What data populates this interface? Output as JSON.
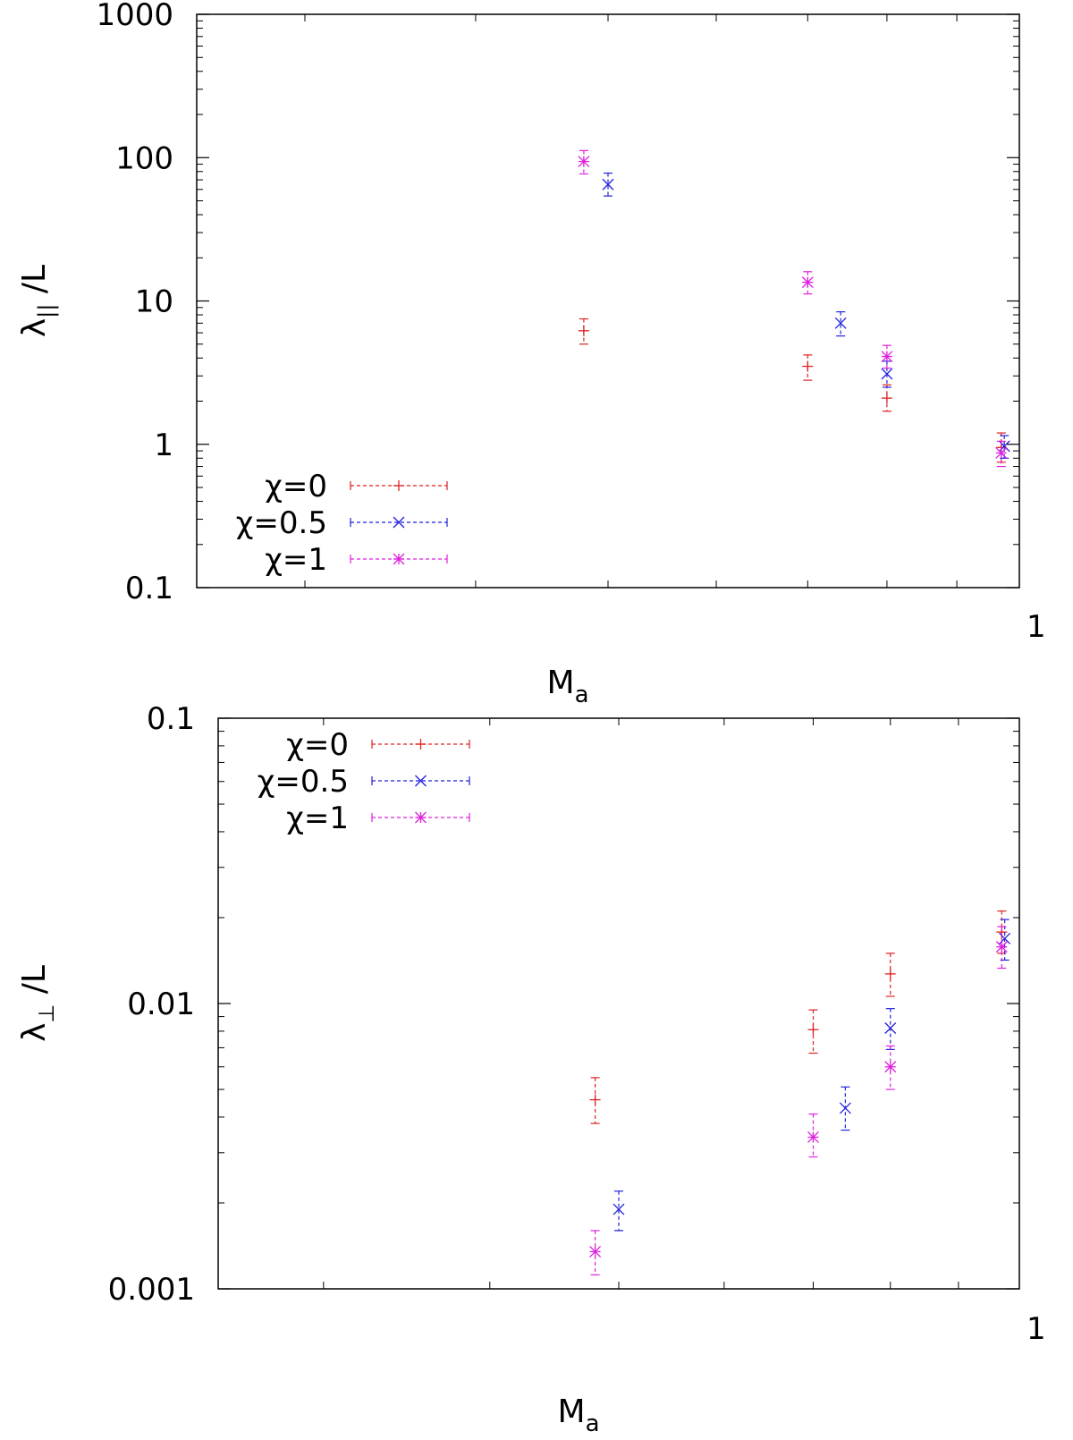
{
  "chart_data": [
    {
      "type": "scatter",
      "title": "",
      "xlabel": "M",
      "xlabel_sub": "a",
      "ylabel": "λ",
      "ylabel_sub": "||",
      "ylabel_suffix": " /L",
      "xscale": "log",
      "yscale": "log",
      "xlim": [
        0.25,
        1
      ],
      "ylim": [
        0.1,
        1000
      ],
      "x_tick_labels": [
        "1"
      ],
      "y_tick_labels": [
        "0.1",
        "1",
        "10",
        "100",
        "1000"
      ],
      "y_ticks": [
        0.1,
        1,
        10,
        100,
        1000
      ],
      "legend_position": "bottom-left",
      "grid": false,
      "series": [
        {
          "name": "χ=0",
          "color": "#dd2222",
          "marker": "plus",
          "x": [
            0.48,
            0.7,
            0.8,
            0.97
          ],
          "y": [
            6.2,
            3.5,
            2.1,
            0.95
          ],
          "ylo": [
            5.0,
            2.8,
            1.7,
            0.75
          ],
          "yhi": [
            7.5,
            4.2,
            2.6,
            1.2
          ]
        },
        {
          "name": "χ=0.5",
          "color": "#2222dd",
          "marker": "cross",
          "x": [
            0.5,
            0.74,
            0.8,
            0.975
          ],
          "y": [
            65,
            7.0,
            3.1,
            0.97
          ],
          "ylo": [
            54,
            5.7,
            2.5,
            0.8
          ],
          "yhi": [
            78,
            8.4,
            3.8,
            1.15
          ]
        },
        {
          "name": "χ=1",
          "color": "#dd22dd",
          "marker": "star",
          "x": [
            0.48,
            0.7,
            0.8,
            0.97
          ],
          "y": [
            94,
            13.5,
            4.1,
            0.87
          ],
          "ylo": [
            77,
            11.2,
            3.4,
            0.7
          ],
          "yhi": [
            112,
            16,
            4.9,
            1.05
          ]
        }
      ]
    },
    {
      "type": "scatter",
      "title": "",
      "xlabel": "M",
      "xlabel_sub": "a",
      "ylabel": "λ",
      "ylabel_sub": "⊥",
      "ylabel_suffix": " /L",
      "xscale": "log",
      "yscale": "log",
      "xlim": [
        0.25,
        1
      ],
      "ylim": [
        0.001,
        0.1
      ],
      "x_tick_labels": [
        "1"
      ],
      "y_tick_labels": [
        "0.001",
        "0.01",
        "0.1"
      ],
      "y_ticks": [
        0.001,
        0.01,
        0.1
      ],
      "legend_position": "top-left",
      "grid": false,
      "series": [
        {
          "name": "χ=0",
          "color": "#dd2222",
          "marker": "plus",
          "x": [
            0.48,
            0.7,
            0.8,
            0.97
          ],
          "y": [
            0.0046,
            0.0081,
            0.0127,
            0.0178
          ],
          "ylo": [
            0.0038,
            0.0067,
            0.0106,
            0.015
          ],
          "yhi": [
            0.0055,
            0.0095,
            0.015,
            0.0211
          ]
        },
        {
          "name": "χ=0.5",
          "color": "#2222dd",
          "marker": "cross",
          "x": [
            0.5,
            0.74,
            0.8,
            0.975
          ],
          "y": [
            0.0019,
            0.0043,
            0.0082,
            0.0169
          ],
          "ylo": [
            0.0016,
            0.0036,
            0.0069,
            0.0142
          ],
          "yhi": [
            0.0022,
            0.0051,
            0.0096,
            0.0197
          ]
        },
        {
          "name": "χ=1",
          "color": "#dd22dd",
          "marker": "star",
          "x": [
            0.48,
            0.7,
            0.8,
            0.97
          ],
          "y": [
            0.00135,
            0.0034,
            0.006,
            0.0158
          ],
          "ylo": [
            0.00112,
            0.0029,
            0.005,
            0.0133
          ],
          "yhi": [
            0.0016,
            0.0041,
            0.0071,
            0.0186
          ]
        }
      ]
    }
  ]
}
